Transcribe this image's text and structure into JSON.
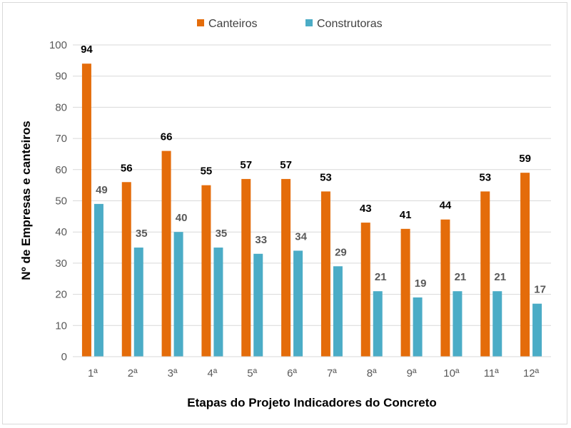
{
  "chart_data": {
    "type": "bar",
    "title": "",
    "xlabel": "Etapas do Projeto Indicadores do Concreto",
    "ylabel": "Nº de Empresas e canteiros",
    "ylim": [
      0,
      100
    ],
    "yticks": [
      "0",
      "10",
      "20",
      "30",
      "40",
      "50",
      "60",
      "70",
      "80",
      "90",
      "100"
    ],
    "grid": true,
    "legend_position": "top",
    "categories": [
      "1ª",
      "2ª",
      "3ª",
      "4ª",
      "5ª",
      "6ª",
      "7ª",
      "8ª",
      "9ª",
      "10ª",
      "11ª",
      "12ª"
    ],
    "series": [
      {
        "name": "Canteiros",
        "color": "#E46C0A",
        "values": [
          94,
          56,
          66,
          55,
          57,
          57,
          53,
          43,
          41,
          44,
          53,
          59
        ]
      },
      {
        "name": "Construtoras",
        "color": "#4BACC6",
        "values": [
          49,
          35,
          40,
          35,
          33,
          34,
          29,
          21,
          19,
          21,
          21,
          17
        ]
      }
    ]
  }
}
